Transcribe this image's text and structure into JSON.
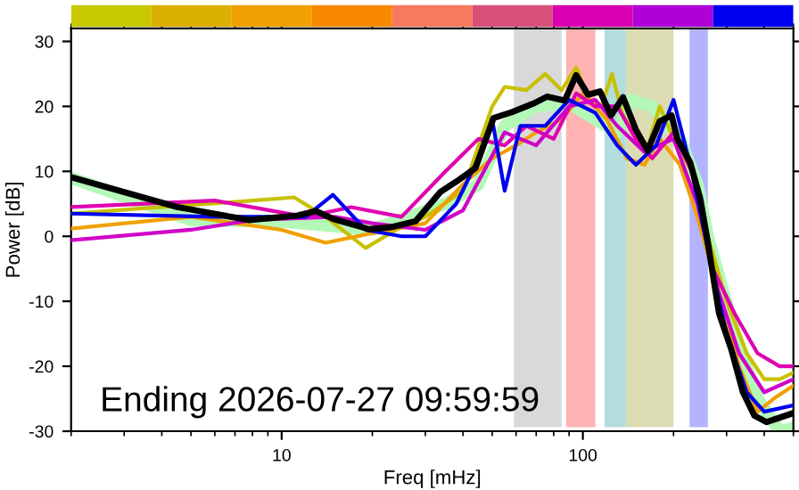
{
  "chart_data": {
    "type": "line",
    "xlabel": "Freq [mHz]",
    "ylabel": "Power [dB]",
    "log": "x",
    "xlim": [
      2,
      500
    ],
    "xticks": [
      10,
      100
    ],
    "ylim": [
      -30,
      32
    ],
    "yticks": [
      -30,
      -20,
      -10,
      0,
      10,
      20,
      30
    ],
    "grid": false,
    "legend": false,
    "annotations": [
      "Ending 2026-07-27 09:59:59"
    ],
    "bands": [
      {
        "axis": "x",
        "from": 59,
        "to": 85,
        "color": "#d9d9d9"
      },
      {
        "axis": "x",
        "from": 88,
        "to": 110,
        "color": "#ffb3b3"
      },
      {
        "axis": "x",
        "from": 118,
        "to": 139,
        "color": "#b3dcdc"
      },
      {
        "axis": "x",
        "from": 139,
        "to": 200,
        "color": "#dcdcb3"
      },
      {
        "axis": "x",
        "from": 226,
        "to": 260,
        "color": "#b3b3ff"
      }
    ],
    "series": [
      {
        "color": "#b4f8b8",
        "x": [
          2,
          5,
          10,
          20,
          35,
          45,
          55,
          70,
          90,
          110,
          130,
          145,
          170,
          210,
          240,
          260,
          320,
          380,
          450,
          500
        ],
        "values": [
          9,
          2.5,
          2.3,
          1,
          5,
          8,
          17,
          20,
          20.5,
          18,
          16,
          21,
          20,
          15,
          8,
          0,
          -15,
          -25,
          -30,
          -29.5
        ]
      },
      {
        "color": "#c8c000",
        "x": [
          2,
          4,
          8,
          11,
          14,
          19,
          24,
          30,
          40,
          50,
          55,
          65,
          75,
          85,
          95,
          105,
          115,
          125,
          135,
          150,
          165,
          180,
          200,
          230,
          260,
          300,
          350,
          400,
          450,
          500
        ],
        "values": [
          3.5,
          4.5,
          5.5,
          6,
          3,
          -1.8,
          1,
          3,
          7,
          20,
          23,
          22.5,
          25,
          22.5,
          26,
          21,
          20,
          25,
          19,
          15,
          14,
          20,
          15,
          10,
          0,
          -10,
          -18,
          -22,
          -22,
          -21
        ]
      },
      {
        "color": "#f0a000",
        "x": [
          2,
          5,
          10,
          14,
          20,
          30,
          40,
          50,
          60,
          70,
          85,
          100,
          120,
          140,
          160,
          180,
          210,
          240,
          280,
          330,
          380,
          430,
          500
        ],
        "values": [
          1.2,
          3,
          1,
          -1,
          0.5,
          2,
          8,
          12,
          14,
          16,
          18,
          22,
          18,
          12,
          11,
          15,
          11,
          3,
          -8,
          -20,
          -27,
          -25,
          -23
        ]
      },
      {
        "color": "#e000b0",
        "x": [
          2,
          6,
          12,
          17,
          25,
          35,
          45,
          55,
          65,
          80,
          95,
          110,
          130,
          150,
          170,
          200,
          230,
          270,
          320,
          380,
          450,
          500
        ],
        "values": [
          4.5,
          5.5,
          3,
          4.5,
          3,
          10,
          15,
          14,
          17,
          15,
          22,
          20,
          20,
          15,
          12,
          16,
          10,
          -5,
          -12,
          -18,
          -20,
          -20
        ]
      },
      {
        "color": "#d000c8",
        "x": [
          2,
          5,
          8,
          15,
          20,
          30,
          40,
          55,
          70,
          90,
          110,
          130,
          160,
          200,
          240,
          280,
          330,
          400,
          500
        ],
        "values": [
          -0.6,
          1,
          2.5,
          3,
          2,
          1,
          4,
          16,
          14,
          20,
          21,
          17,
          13,
          15,
          5,
          -8,
          -18,
          -24,
          -22
        ]
      },
      {
        "color": "#0000f0",
        "x": [
          2,
          6,
          12,
          14.8,
          19,
          25,
          30,
          38,
          45,
          50,
          55,
          62,
          75,
          90,
          110,
          130,
          150,
          175,
          200,
          230,
          260,
          300,
          350,
          400,
          500
        ],
        "values": [
          3.5,
          3,
          3,
          6.4,
          1,
          0,
          0,
          5,
          12,
          18,
          7,
          17,
          17,
          21,
          19,
          14,
          11,
          14,
          21,
          10,
          -2,
          -15,
          -24,
          -27,
          -26
        ]
      },
      {
        "color": "#000000",
        "x": [
          2,
          4.5,
          7.8,
          11.3,
          13,
          14.8,
          19.5,
          23,
          27.8,
          33.6,
          38.5,
          44,
          50.5,
          58,
          69,
          76,
          87,
          95,
          104,
          114,
          124,
          136,
          150,
          164,
          180,
          197,
          206,
          227,
          245,
          259,
          283,
          311,
          340,
          371,
          407,
          445,
          500
        ],
        "values": [
          9.1,
          4.5,
          2.5,
          3.2,
          3.9,
          2.7,
          1.1,
          1.4,
          2.3,
          6.8,
          8.6,
          10.5,
          18.2,
          19.1,
          20.5,
          21.5,
          20.9,
          24.8,
          21.8,
          22.3,
          18.6,
          21.4,
          16.4,
          13.2,
          17.7,
          18.6,
          15,
          11.4,
          5.9,
          -0.5,
          -11.8,
          -17.4,
          -24,
          -27.6,
          -28.6,
          -28,
          -27.2
        ]
      }
    ]
  }
}
